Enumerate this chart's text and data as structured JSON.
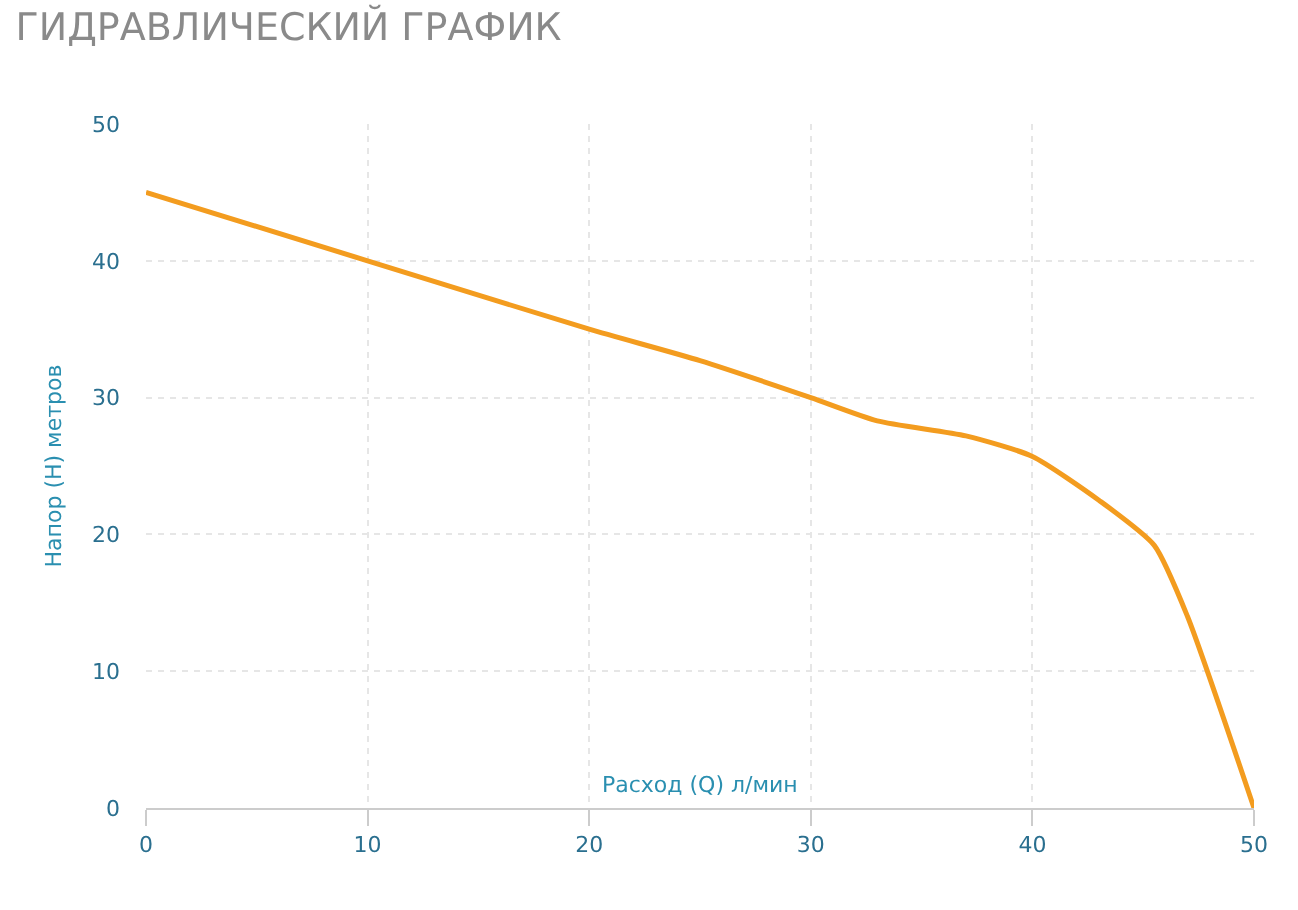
{
  "chart_data": {
    "type": "line",
    "title": "ГИДРАВЛИЧЕСКИЙ ГРАФИК",
    "xlabel": "Расход (Q) л/мин",
    "ylabel": "Напор (H) метров",
    "x": [
      0,
      10,
      20,
      25,
      30,
      33,
      37,
      40,
      43,
      45.5,
      47,
      50
    ],
    "series": [
      {
        "color": "#f39c1f",
        "values": [
          45,
          40,
          35,
          32.7,
          30,
          28.3,
          27.2,
          25.7,
          22.5,
          19.2,
          14,
          0
        ]
      }
    ],
    "xlim": [
      0,
      50
    ],
    "xticks": [
      0,
      10,
      20,
      30,
      40,
      50
    ],
    "ylim": [
      0,
      50
    ],
    "yticks": [
      0,
      10,
      20,
      30,
      40,
      50
    ],
    "grid": true,
    "marker": "none",
    "line_style": "solid"
  }
}
